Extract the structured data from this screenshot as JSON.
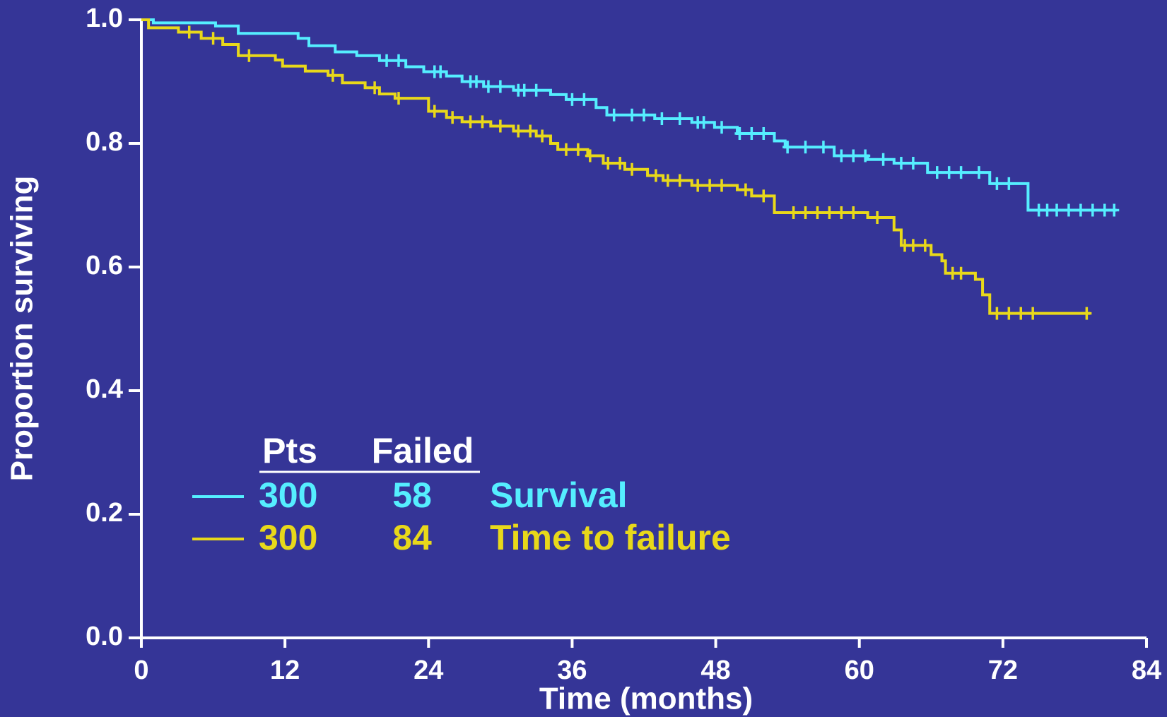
{
  "chart_data": {
    "type": "step",
    "xlabel": "Time (months)",
    "ylabel": "Proportion surviving",
    "xlim": [
      0,
      84
    ],
    "xticks": [
      0,
      12,
      24,
      36,
      48,
      60,
      72,
      84
    ],
    "ylim": [
      0,
      1
    ],
    "yticks": [
      {
        "value": 0,
        "label": "0.0"
      },
      0.2,
      0.4,
      0.6,
      0.8,
      {
        "value": 1,
        "label": "1.0"
      }
    ],
    "legend_headers": [
      "Pts",
      "Failed"
    ],
    "series": [
      {
        "name": "Survival",
        "color": "#55eeff",
        "pts": 300,
        "failed": 58,
        "x": [
          0,
          1,
          6.2,
          8.1,
          13.1,
          14.0,
          16.2,
          18.0,
          19.9,
          22.1,
          23.6,
          25.5,
          26.8,
          28.6,
          31.1,
          34.2,
          35.5,
          38.0,
          38.9,
          42.9,
          46.0,
          47.9,
          49.8,
          52.9,
          53.8,
          57.9,
          60.7,
          62.9,
          65.7,
          70.9,
          74.1,
          81.5
        ],
        "values": [
          1.0,
          0.995,
          0.99,
          0.978,
          0.97,
          0.958,
          0.948,
          0.942,
          0.934,
          0.924,
          0.916,
          0.909,
          0.9,
          0.892,
          0.886,
          0.879,
          0.871,
          0.858,
          0.846,
          0.84,
          0.834,
          0.826,
          0.816,
          0.804,
          0.794,
          0.78,
          0.774,
          0.768,
          0.753,
          0.735,
          0.692,
          0.692
        ],
        "censored": [
          20.5,
          21.5,
          24.5,
          25,
          27.5,
          28,
          29,
          30,
          31.5,
          32,
          33,
          36,
          37,
          39.5,
          41,
          42,
          43.5,
          45,
          46.5,
          47,
          48.5,
          50,
          51,
          52,
          54,
          55.5,
          57,
          58.5,
          59.5,
          60.5,
          62,
          63.5,
          64.5,
          66.5,
          67.5,
          68.5,
          70,
          71.5,
          72.5,
          75,
          75.7,
          76.5,
          77.5,
          78.5,
          79.5,
          80.5,
          81.3
        ]
      },
      {
        "name": "Time to failure",
        "color": "#e8d81a",
        "pts": 300,
        "failed": 84,
        "x": [
          0,
          0.6,
          3.1,
          5.0,
          6.8,
          8.1,
          11.2,
          11.8,
          13.7,
          15.6,
          16.8,
          18.7,
          19.9,
          21.2,
          24.0,
          25.5,
          26.8,
          29.2,
          31.1,
          33.0,
          34.2,
          34.8,
          37.3,
          38.6,
          40.4,
          42.3,
          43.6,
          46.0,
          49.8,
          51.0,
          52.9,
          60.7,
          62.9,
          63.5,
          66.0,
          66.9,
          67.2,
          69.7,
          70.3,
          70.9,
          79.3
        ],
        "values": [
          1.0,
          0.987,
          0.98,
          0.97,
          0.96,
          0.942,
          0.935,
          0.925,
          0.917,
          0.91,
          0.898,
          0.89,
          0.88,
          0.873,
          0.852,
          0.842,
          0.835,
          0.828,
          0.82,
          0.812,
          0.8,
          0.79,
          0.78,
          0.768,
          0.758,
          0.748,
          0.74,
          0.732,
          0.725,
          0.715,
          0.688,
          0.68,
          0.66,
          0.635,
          0.62,
          0.61,
          0.59,
          0.58,
          0.555,
          0.525,
          0.525
        ],
        "censored": [
          4,
          6,
          9,
          16,
          19.5,
          21.5,
          24.5,
          26,
          27.5,
          28.5,
          30,
          31.5,
          32.5,
          33.5,
          35.5,
          36.5,
          37.5,
          39,
          40,
          41,
          43,
          44,
          45,
          46.5,
          47.5,
          48.5,
          50.5,
          52,
          54.5,
          55.5,
          56.5,
          57.5,
          58.5,
          59.5,
          61.5,
          63.8,
          64.5,
          65.5,
          67.8,
          68.5,
          71.5,
          72.5,
          73.5,
          74.5,
          79
        ]
      }
    ]
  }
}
